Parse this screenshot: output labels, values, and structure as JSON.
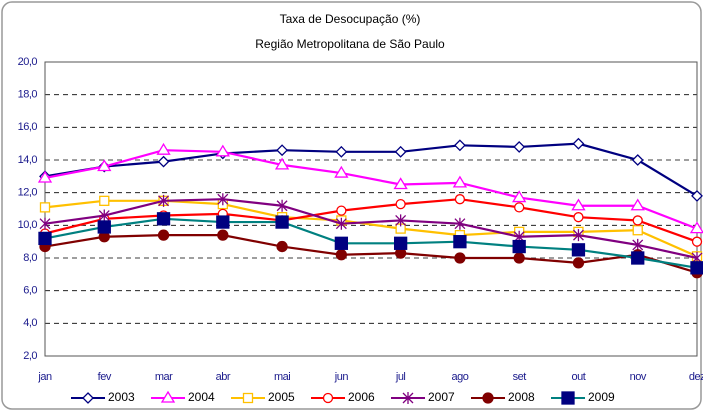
{
  "chart_data": {
    "type": "line",
    "title": "Taxa de Desocupação (%)",
    "subtitle": "Região Metropolitana de São Paulo",
    "categories": [
      "jan",
      "fev",
      "mar",
      "abr",
      "mai",
      "jun",
      "jul",
      "ago",
      "set",
      "out",
      "nov",
      "dez"
    ],
    "series": [
      {
        "name": "2003",
        "color": "#000080",
        "marker": "diamond",
        "values": [
          13.0,
          13.6,
          13.9,
          14.4,
          14.6,
          14.5,
          14.5,
          14.9,
          14.8,
          15.0,
          14.0,
          11.8
        ]
      },
      {
        "name": "2004",
        "color": "#ff00ff",
        "marker": "triangle",
        "values": [
          12.9,
          13.6,
          14.6,
          14.5,
          13.7,
          13.2,
          12.5,
          12.6,
          11.7,
          11.2,
          11.2,
          9.8
        ]
      },
      {
        "name": "2005",
        "color": "#ffc000",
        "marker": "square",
        "values": [
          11.1,
          11.5,
          11.5,
          11.3,
          10.5,
          10.3,
          9.8,
          9.4,
          9.6,
          9.6,
          9.7,
          8.1
        ]
      },
      {
        "name": "2006",
        "color": "#ff0000",
        "marker": "circle",
        "values": [
          9.5,
          10.4,
          10.6,
          10.7,
          10.3,
          10.9,
          11.3,
          11.6,
          11.1,
          10.5,
          10.3,
          9.0
        ]
      },
      {
        "name": "2007",
        "color": "#800080",
        "marker": "star",
        "values": [
          10.1,
          10.6,
          11.5,
          11.6,
          11.2,
          10.1,
          10.3,
          10.1,
          9.3,
          9.4,
          8.8,
          8.0
        ]
      },
      {
        "name": "2008",
        "color": "#800000",
        "marker": "filled-circle",
        "values": [
          8.7,
          9.3,
          9.4,
          9.4,
          8.7,
          8.2,
          8.3,
          8.0,
          8.0,
          7.7,
          8.2,
          7.1
        ]
      },
      {
        "name": "2009",
        "color": "#008080",
        "marker": "filled-square",
        "marker_color": "#000080",
        "values": [
          9.2,
          9.9,
          10.4,
          10.2,
          10.2,
          8.9,
          8.9,
          9.0,
          8.7,
          8.5,
          8.0,
          7.4
        ]
      }
    ],
    "ylim": [
      2,
      20
    ],
    "yticks": [
      {
        "value": 2,
        "label": "2,0"
      },
      {
        "value": 4,
        "label": "4,0"
      },
      {
        "value": 6,
        "label": "6,0"
      },
      {
        "value": 8,
        "label": "8,0"
      },
      {
        "value": 10,
        "label": "10,0"
      },
      {
        "value": 12,
        "label": "12,0"
      },
      {
        "value": 14,
        "label": "14,0"
      },
      {
        "value": 16,
        "label": "16,0"
      },
      {
        "value": 18,
        "label": "18,0"
      },
      {
        "value": 20,
        "label": "20,0"
      }
    ],
    "grid": true,
    "legend": "bottom"
  }
}
